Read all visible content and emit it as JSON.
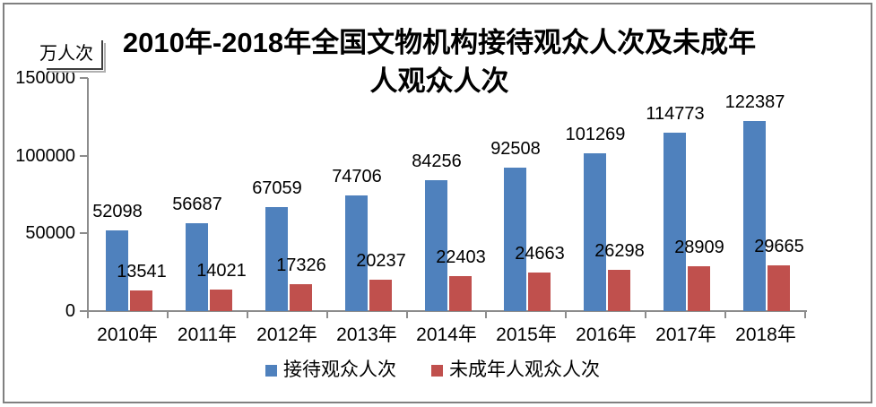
{
  "window": {
    "background": "#ffffff",
    "frame_border_color": "#808080"
  },
  "chart_data": {
    "type": "bar",
    "title": "2010年-2018年全国文物机构接待观众人次及未成年人观众人次",
    "title_lines": [
      "2010年-2018年全国文物机构接待观众人次及未成年",
      "人观众人次"
    ],
    "y_axis_title": "万人次",
    "categories": [
      "2010年",
      "2011年",
      "2012年",
      "2013年",
      "2014年",
      "2015年",
      "2016年",
      "2017年",
      "2018年"
    ],
    "series": [
      {
        "id": "total-visitors",
        "name": "接待观众人次",
        "color": "#4f81bd",
        "values": [
          52098,
          56687,
          67059,
          74706,
          84256,
          92508,
          101269,
          114773,
          122387
        ]
      },
      {
        "id": "minor-visitors",
        "name": "未成年人观众人次",
        "color": "#c0504d",
        "values": [
          13541,
          14021,
          17326,
          20237,
          22403,
          24663,
          26298,
          28909,
          29665
        ]
      }
    ],
    "ylim": [
      0,
      150000
    ],
    "y_ticks": [
      0,
      50000,
      100000,
      150000
    ],
    "grid": false,
    "data_labels": true,
    "legend_position": "bottom",
    "axis_color": "#8c8c8c"
  }
}
